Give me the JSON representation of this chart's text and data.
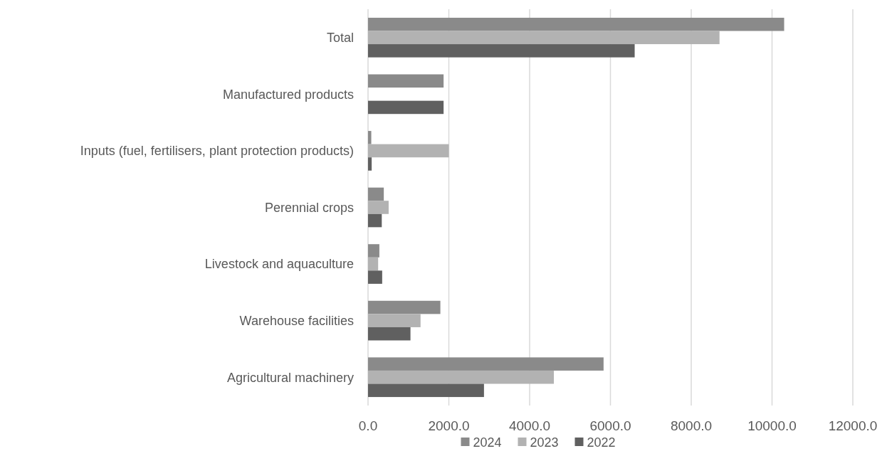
{
  "chart_data": {
    "type": "bar",
    "orientation": "horizontal",
    "categories": [
      "Total",
      "Manufactured products",
      "Inputs (fuel, fertilisers, plant protection products)",
      "Perennial crops",
      "Livestock and aquaculture",
      "Warehouse facilities",
      "Agricultural machinery"
    ],
    "series": [
      {
        "name": "2024",
        "color": "#8a8a8a",
        "values": [
          10300,
          1870,
          80,
          390,
          280,
          1790,
          5830
        ]
      },
      {
        "name": "2023",
        "color": "#b2b2b2",
        "values": [
          8700,
          null,
          2000,
          510,
          250,
          1300,
          4600
        ]
      },
      {
        "name": "2022",
        "color": "#606060",
        "values": [
          6600,
          1870,
          90,
          340,
          350,
          1050,
          2870
        ]
      }
    ],
    "xlim": [
      0,
      12000
    ],
    "xticks": [
      {
        "value": 0,
        "label": "0.0"
      },
      {
        "value": 2000,
        "label": "2000.0"
      },
      {
        "value": 4000,
        "label": "4000.0"
      },
      {
        "value": 6000,
        "label": "6000.0"
      },
      {
        "value": 8000,
        "label": "8000.0"
      },
      {
        "value": 10000,
        "label": "10000.0"
      },
      {
        "value": 12000,
        "label": "12000.0"
      }
    ],
    "grid": "x",
    "legend": "bottom"
  }
}
